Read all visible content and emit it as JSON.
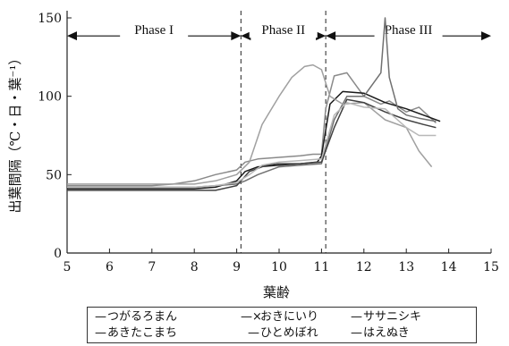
{
  "chart_data": {
    "type": "line",
    "xlabel": "葉齢",
    "ylabel": "出葉間隔（℃・日・葉⁻¹）",
    "xlim": [
      5,
      15
    ],
    "ylim": [
      0,
      150
    ],
    "xticks": [
      "5",
      "6",
      "7",
      "8",
      "9",
      "10",
      "11",
      "12",
      "13",
      "14",
      "15"
    ],
    "yticks": [
      "0",
      "50",
      "100",
      "150"
    ],
    "grid": false,
    "phases": [
      {
        "label": "Phase I",
        "from": 5,
        "to": 9.1
      },
      {
        "label": "Phase II",
        "from": 9.1,
        "to": 11.1
      },
      {
        "label": "Phase III",
        "from": 11.1,
        "to": 15
      }
    ],
    "boundaries": [
      9.1,
      11.1
    ],
    "legend": {
      "placement": "bottom",
      "entries": [
        {
          "marker": "—",
          "label": "つがるろまん"
        },
        {
          "marker": "—×",
          "label": "おきにいり"
        },
        {
          "marker": "—",
          "label": "ササニシキ"
        },
        {
          "marker": "—",
          "label": "あきたこまち"
        },
        {
          "marker": "—",
          "label": "ひとめぼれ"
        },
        {
          "marker": "—",
          "label": "はえぬき"
        }
      ]
    },
    "series": [
      {
        "color": "#8a8a8a",
        "x": [
          5,
          6,
          7,
          7.5,
          8,
          8.5,
          9,
          9.2,
          9.5,
          10,
          10.5,
          10.8,
          11,
          11.1,
          11.3,
          11.6,
          12,
          12.4,
          12.6,
          13,
          13.3,
          13.7
        ],
        "y": [
          43,
          43,
          43,
          44,
          46,
          50,
          53,
          58,
          60,
          61,
          62,
          63,
          63,
          92,
          113,
          115,
          100,
          95,
          97,
          90,
          93,
          83
        ]
      },
      {
        "color": "#1a1a1a",
        "x": [
          5,
          6,
          7,
          8,
          8.5,
          9,
          9.2,
          9.5,
          10,
          10.5,
          10.9,
          11,
          11.2,
          11.5,
          12,
          12.5,
          13,
          13.4,
          13.8
        ],
        "y": [
          41,
          41,
          41,
          41,
          42,
          46,
          52,
          55,
          56,
          57,
          58,
          62,
          95,
          103,
          102,
          96,
          92,
          88,
          84
        ]
      },
      {
        "color": "#707070",
        "x": [
          5,
          6,
          7,
          8,
          8.5,
          9,
          9.2,
          9.5,
          10,
          10.5,
          11,
          11.3,
          11.6,
          12,
          12.4,
          12.5,
          12.6,
          12.8,
          13,
          13.3,
          13.7
        ],
        "y": [
          42,
          42,
          42,
          42,
          43,
          44,
          46,
          50,
          55,
          56,
          57,
          85,
          100,
          100,
          115,
          150,
          112,
          92,
          88,
          86,
          84
        ]
      },
      {
        "color": "#a0a0a0",
        "x": [
          5,
          6,
          7,
          8,
          8.5,
          9,
          9.3,
          9.6,
          10,
          10.3,
          10.6,
          10.8,
          11,
          11.2,
          11.5,
          12,
          12.5,
          13,
          13.3,
          13.6
        ],
        "y": [
          44,
          44,
          44,
          44,
          46,
          50,
          58,
          82,
          100,
          112,
          119,
          120,
          117,
          100,
          95,
          96,
          85,
          80,
          65,
          55
        ]
      },
      {
        "color": "#404040",
        "x": [
          5,
          6,
          7,
          8,
          8.5,
          9,
          9.3,
          9.7,
          10,
          10.5,
          11,
          11.3,
          11.6,
          12,
          12.5,
          13,
          13.4,
          13.7
        ],
        "y": [
          40,
          40,
          40,
          40,
          40,
          43,
          52,
          56,
          57,
          57,
          58,
          80,
          98,
          96,
          90,
          85,
          82,
          80
        ]
      },
      {
        "color": "#b8b8b8",
        "x": [
          5,
          6,
          7,
          8,
          8.5,
          9,
          9.3,
          9.6,
          10,
          10.5,
          11,
          11.3,
          11.6,
          12,
          12.5,
          13,
          13.3,
          13.7
        ],
        "y": [
          42,
          42,
          42,
          42,
          43,
          45,
          50,
          56,
          58,
          59,
          60,
          88,
          96,
          93,
          92,
          80,
          75,
          75
        ]
      }
    ]
  }
}
